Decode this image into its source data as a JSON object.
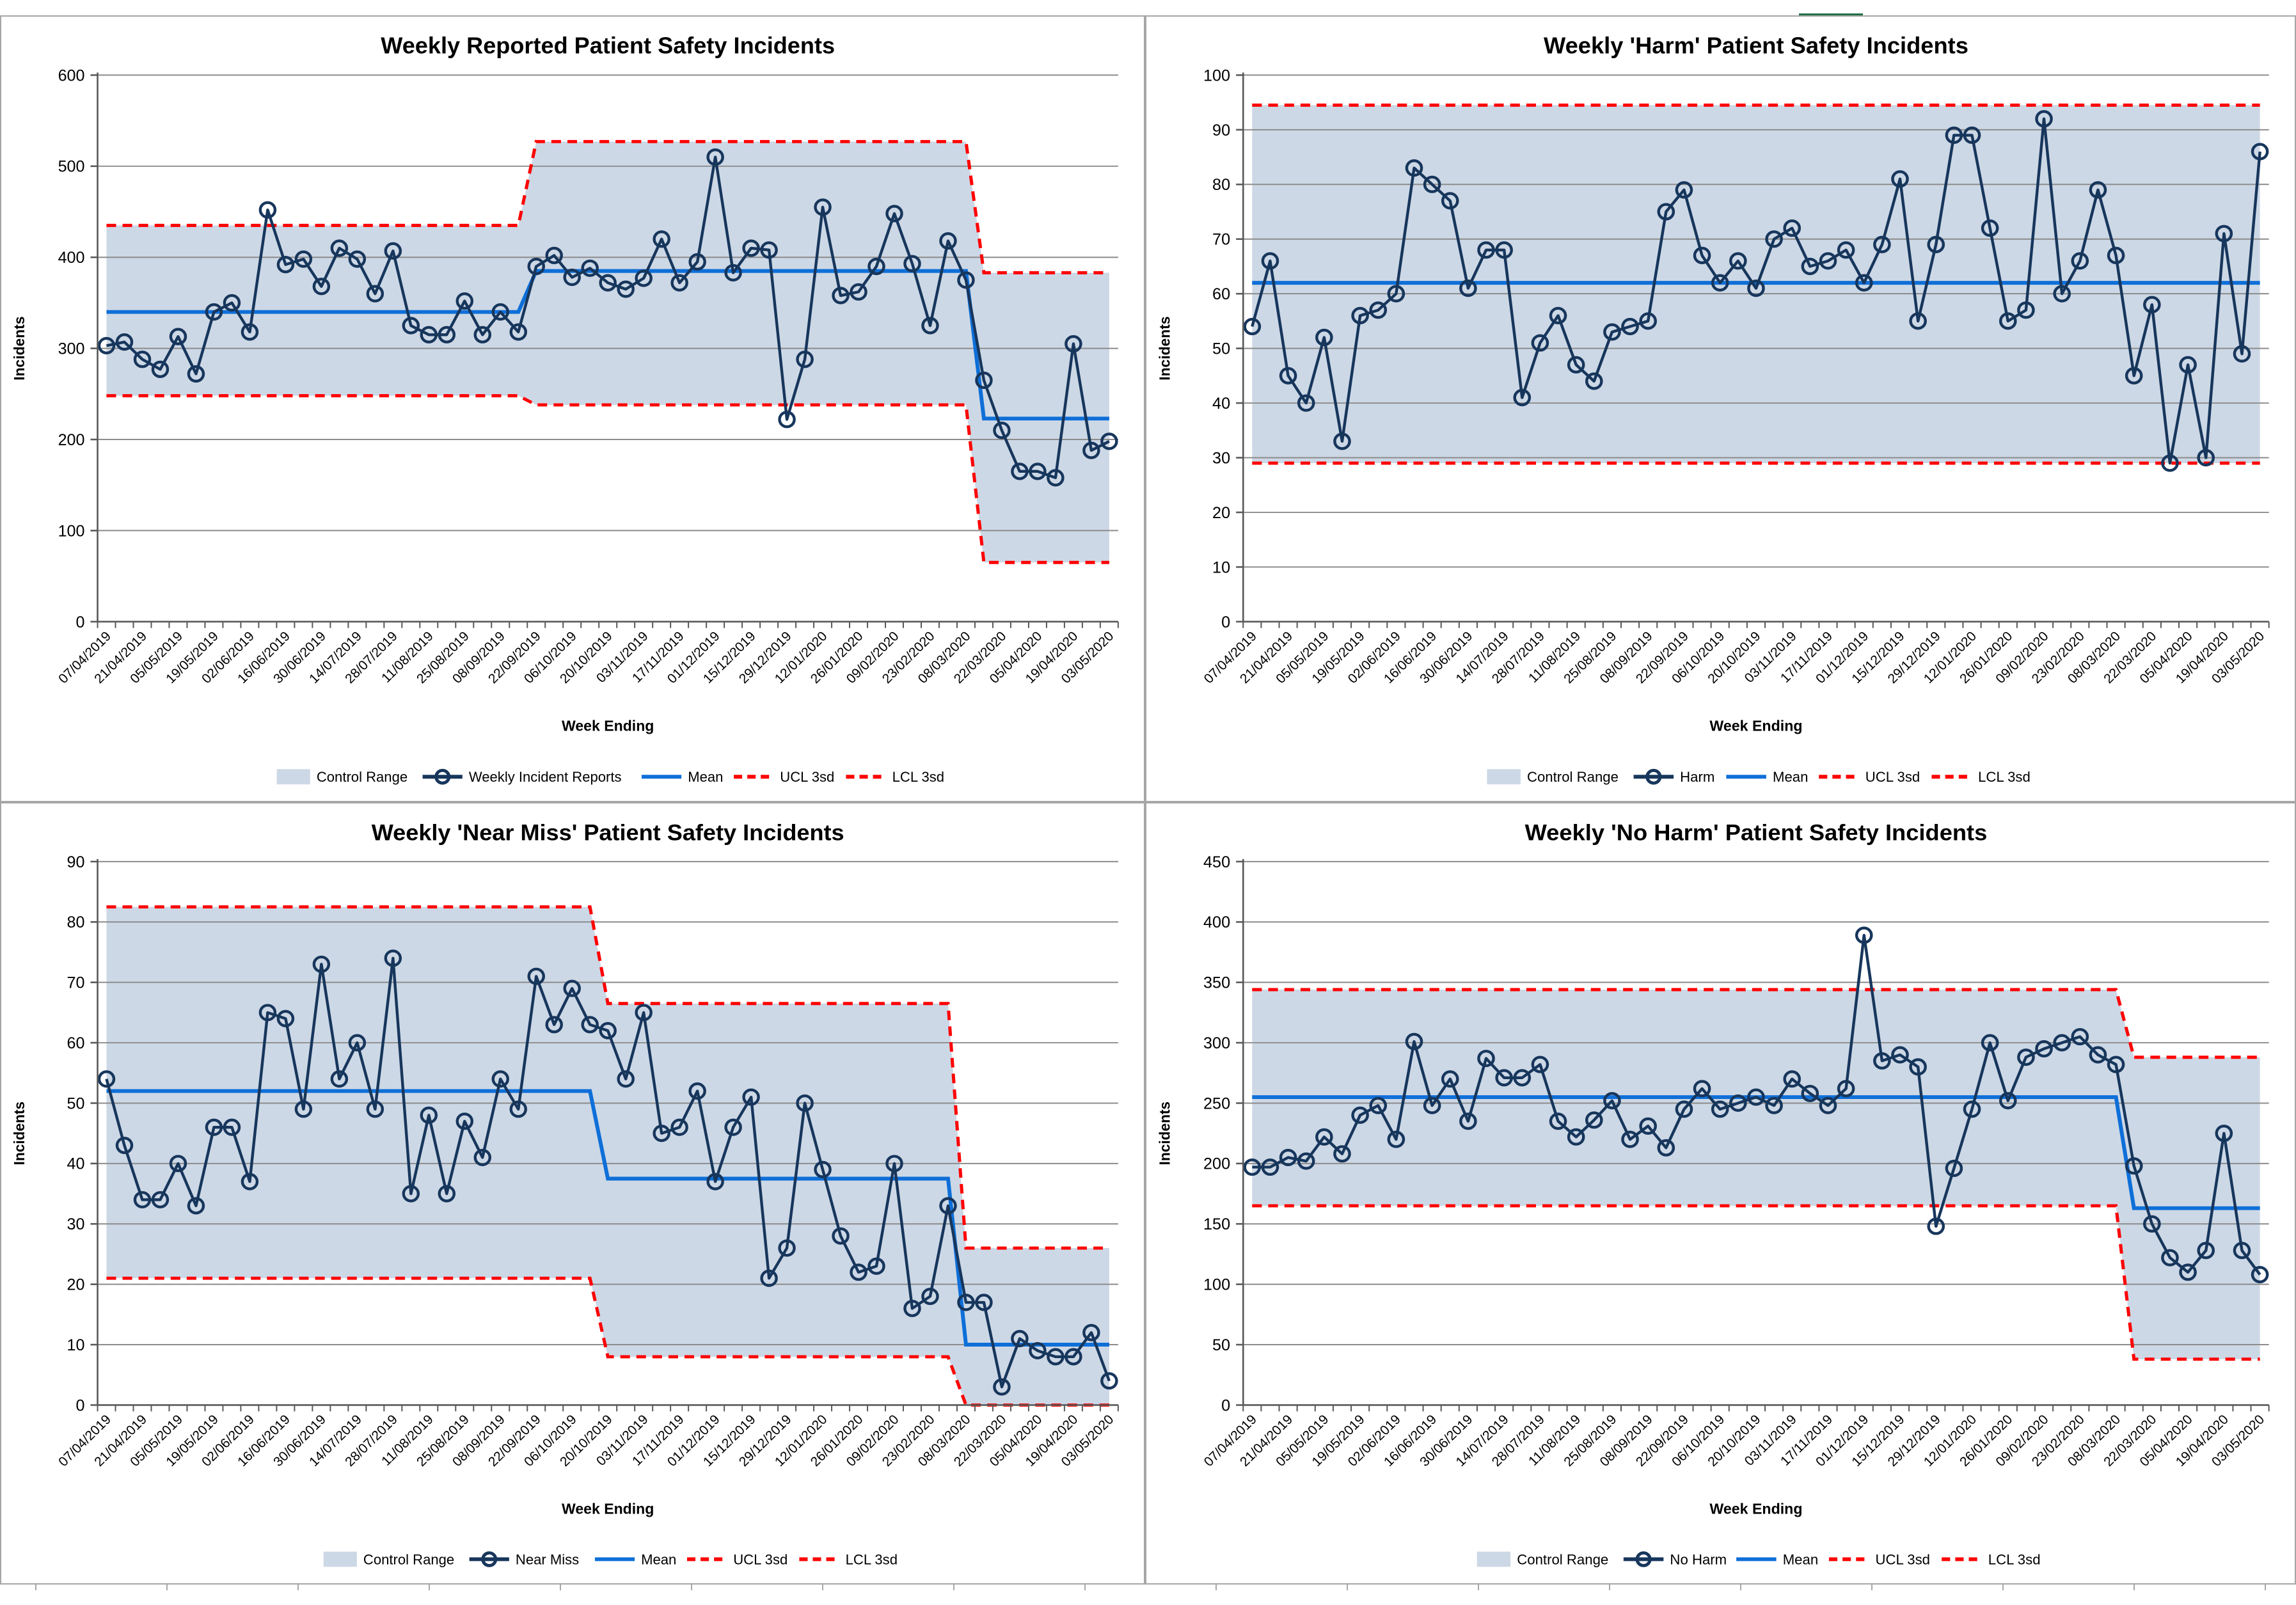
{
  "page": {
    "background": "#ffffff",
    "panel_border_color": "#a6a6a6",
    "top_accent_color": "#1e7145"
  },
  "colors": {
    "control_range_fill": "#cdd8e6",
    "series_line": "#17365c",
    "mean_line": "#0e6fd8",
    "limit_line": "#fe0000",
    "gridline": "#8c8c8c",
    "axis_line": "#595959",
    "text": "#000000"
  },
  "week_axis": {
    "title": "Week Ending",
    "labels": [
      "07/04/2019",
      "21/04/2019",
      "05/05/2019",
      "19/05/2019",
      "02/06/2019",
      "16/06/2019",
      "30/06/2019",
      "14/07/2019",
      "28/07/2019",
      "11/08/2019",
      "25/08/2019",
      "08/09/2019",
      "22/09/2019",
      "06/10/2019",
      "20/10/2019",
      "03/11/2019",
      "17/11/2019",
      "01/12/2019",
      "15/12/2019",
      "29/12/2019",
      "12/01/2020",
      "26/01/2020",
      "09/02/2020",
      "23/02/2020",
      "08/03/2020",
      "22/03/2020",
      "05/04/2020",
      "19/04/2020",
      "03/05/2020"
    ]
  },
  "chart_data": [
    {
      "type": "line",
      "id": "reported",
      "title": "Weekly Reported Patient Safety Incidents",
      "series_name": "Weekly Incident Reports",
      "xlabel": "Week Ending",
      "ylabel": "Incidents",
      "ylim": [
        0,
        600
      ],
      "ytick_step": 100,
      "grid": true,
      "legend_position": "bottom",
      "legend": [
        "Control Range",
        "Weekly Incident Reports",
        "Mean",
        "UCL 3sd",
        "LCL 3sd"
      ],
      "values": [
        303,
        307,
        288,
        277,
        313,
        272,
        340,
        350,
        318,
        452,
        392,
        398,
        368,
        410,
        398,
        360,
        407,
        325,
        315,
        315,
        352,
        315,
        340,
        318,
        390,
        402,
        378,
        388,
        372,
        365,
        377,
        420,
        372,
        395,
        510,
        383,
        410,
        408,
        222,
        288,
        455,
        358,
        362,
        390,
        448,
        393,
        325,
        418,
        375,
        265,
        210,
        165,
        165,
        158,
        305,
        188,
        198
      ],
      "control_segments": [
        {
          "start_week": 1,
          "end_week": 24,
          "mean": 340,
          "ucl": 435,
          "lcl": 248
        },
        {
          "start_week": 25,
          "end_week": 49,
          "mean": 385,
          "ucl": 527,
          "lcl": 238
        },
        {
          "start_week": 50,
          "end_week": 57,
          "mean": 223,
          "ucl": 383,
          "lcl": 65
        }
      ]
    },
    {
      "type": "line",
      "id": "harm",
      "title": "Weekly 'Harm' Patient Safety Incidents",
      "series_name": "Harm",
      "xlabel": "Week Ending",
      "ylabel": "Incidents",
      "ylim": [
        0,
        100
      ],
      "ytick_step": 10,
      "grid": true,
      "legend_position": "bottom",
      "legend": [
        "Control Range",
        "Harm",
        "Mean",
        "UCL 3sd",
        "LCL 3sd"
      ],
      "values": [
        54,
        66,
        45,
        40,
        52,
        33,
        56,
        57,
        60,
        83,
        80,
        77,
        61,
        68,
        68,
        41,
        51,
        56,
        47,
        44,
        53,
        54,
        55,
        75,
        79,
        67,
        62,
        66,
        61,
        70,
        72,
        65,
        66,
        68,
        62,
        69,
        81,
        55,
        69,
        89,
        89,
        72,
        55,
        57,
        92,
        60,
        66,
        79,
        67,
        45,
        58,
        29,
        47,
        30,
        71,
        49,
        86
      ],
      "control_segments": [
        {
          "start_week": 1,
          "end_week": 57,
          "mean": 62,
          "ucl": 94.5,
          "lcl": 29
        }
      ]
    },
    {
      "type": "line",
      "id": "near_miss",
      "title": "Weekly 'Near Miss' Patient Safety Incidents",
      "series_name": "Near Miss",
      "xlabel": "Week Ending",
      "ylabel": "Incidents",
      "ylim": [
        0,
        90
      ],
      "ytick_step": 10,
      "grid": true,
      "legend_position": "bottom",
      "legend": [
        "Control Range",
        "Near Miss",
        "Mean",
        "UCL 3sd",
        "LCL 3sd"
      ],
      "values": [
        54,
        43,
        34,
        34,
        40,
        33,
        46,
        46,
        37,
        65,
        64,
        49,
        73,
        54,
        60,
        49,
        74,
        35,
        48,
        35,
        47,
        41,
        54,
        49,
        71,
        63,
        69,
        63,
        62,
        54,
        65,
        45,
        46,
        52,
        37,
        46,
        51,
        21,
        26,
        50,
        39,
        28,
        22,
        23,
        40,
        16,
        18,
        33,
        17,
        17,
        3,
        11,
        9,
        8,
        8,
        12,
        4
      ],
      "control_segments": [
        {
          "start_week": 1,
          "end_week": 28,
          "mean": 52,
          "ucl": 82.5,
          "lcl": 21
        },
        {
          "start_week": 29,
          "end_week": 48,
          "mean": 37.5,
          "ucl": 66.5,
          "lcl": 8
        },
        {
          "start_week": 49,
          "end_week": 57,
          "mean": 10,
          "ucl": 26,
          "lcl": 0
        }
      ]
    },
    {
      "type": "line",
      "id": "no_harm",
      "title": "Weekly 'No Harm' Patient Safety Incidents",
      "series_name": "No Harm",
      "xlabel": "Week Ending",
      "ylabel": "Incidents",
      "ylim": [
        0,
        450
      ],
      "ytick_step": 50,
      "grid": true,
      "legend_position": "bottom",
      "legend": [
        "Control Range",
        "No Harm",
        "Mean",
        "UCL 3sd",
        "LCL 3sd"
      ],
      "values": [
        197,
        197,
        205,
        202,
        222,
        208,
        240,
        248,
        220,
        301,
        248,
        270,
        235,
        287,
        271,
        271,
        282,
        235,
        222,
        236,
        252,
        220,
        231,
        213,
        245,
        262,
        245,
        250,
        255,
        248,
        270,
        258,
        248,
        262,
        389,
        285,
        290,
        280,
        148,
        196,
        245,
        300,
        252,
        288,
        295,
        300,
        305,
        290,
        282,
        198,
        150,
        122,
        110,
        128,
        225,
        128,
        108
      ],
      "control_segments": [
        {
          "start_week": 1,
          "end_week": 49,
          "mean": 255,
          "ucl": 344,
          "lcl": 165
        },
        {
          "start_week": 50,
          "end_week": 57,
          "mean": 163,
          "ucl": 288,
          "lcl": 38
        }
      ]
    }
  ]
}
